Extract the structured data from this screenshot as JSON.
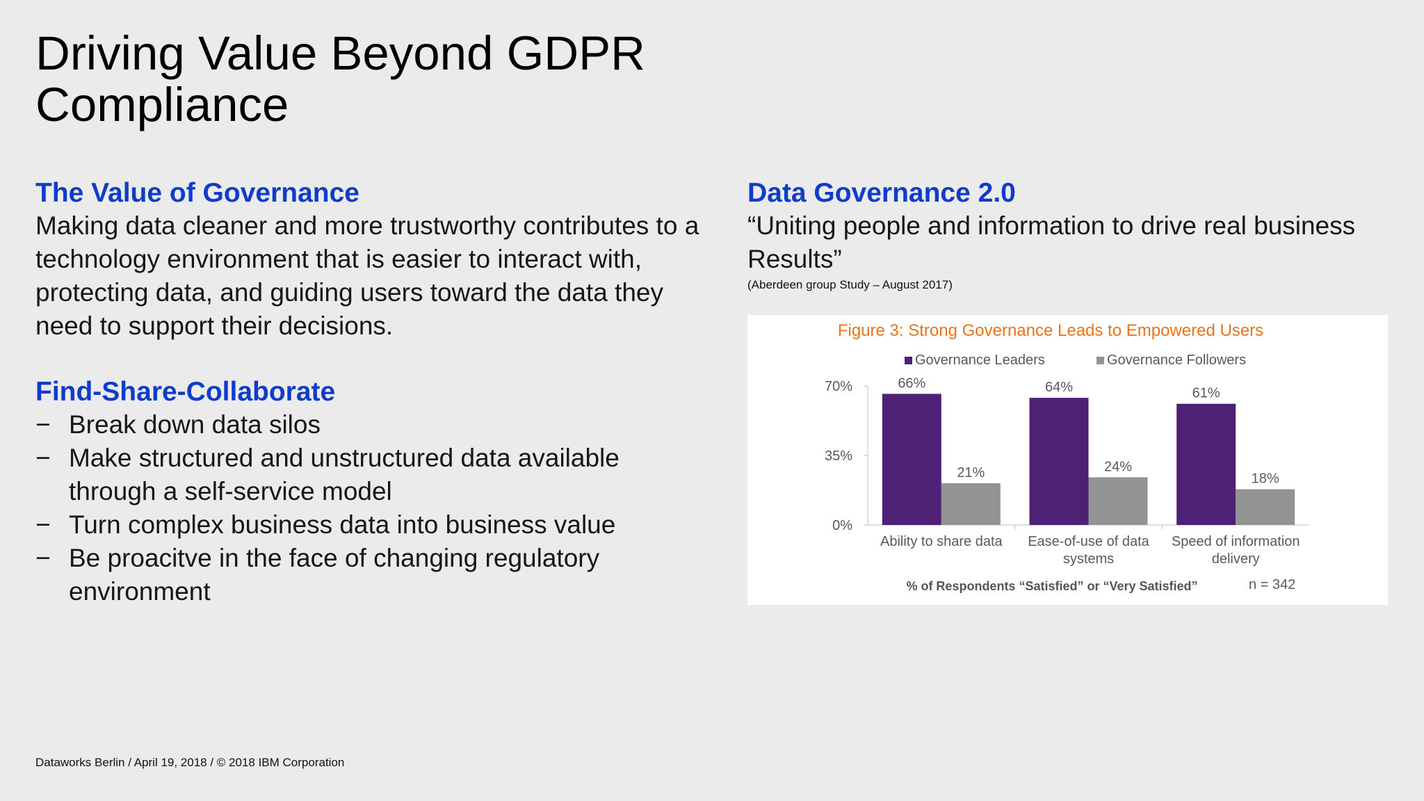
{
  "slide": {
    "title_line1": "Driving Value Beyond GDPR",
    "title_line2": "Compliance"
  },
  "left": {
    "heading1": "The Value of Governance",
    "paragraph": "Making data cleaner and more trustworthy contributes to a technology environment that is easier to interact with, protecting data, and guiding users toward the data they need to support their decisions.",
    "heading2": "Find-Share-Collaborate",
    "bullets": [
      {
        "marker": "−",
        "text": "Break down data silos"
      },
      {
        "marker": "−",
        "text": "Make structured and unstructured data available through a self-service model"
      },
      {
        "marker": "−",
        "text": "Turn complex business data into business value"
      },
      {
        "marker": "−",
        "text": "Be proacitve in the face of changing regulatory environment"
      }
    ]
  },
  "right": {
    "heading": "Data Governance 2.0",
    "quote": "“Uniting people and information to drive real business Results”",
    "citation": "(Aberdeen group Study – August 2017)"
  },
  "chart_data": {
    "type": "bar",
    "title": "Figure 3: Strong Governance Leads to Empowered Users",
    "categories": [
      "Ability to share data",
      "Ease-of-use of data systems",
      "Speed of information delivery"
    ],
    "category_lines": [
      [
        "Ability to share data"
      ],
      [
        "Ease-of-use of data",
        "systems"
      ],
      [
        "Speed of information",
        "delivery"
      ]
    ],
    "series": [
      {
        "name": "Governance Leaders",
        "values": [
          66,
          64,
          61
        ],
        "color": "#4f2176"
      },
      {
        "name": "Governance Followers",
        "values": [
          21,
          24,
          18
        ],
        "color": "#939393"
      }
    ],
    "value_labels": [
      [
        "66%",
        "64%",
        "61%"
      ],
      [
        "21%",
        "24%",
        "18%"
      ]
    ],
    "ylim": [
      0,
      70
    ],
    "yticks": [
      0,
      35,
      70
    ],
    "ytick_labels": [
      "0%",
      "35%",
      "70%"
    ],
    "xlabel": "% of Respondents “Satisfied” or “Very Satisfied”",
    "annotation": "n =  342",
    "legend": "top",
    "grid": false,
    "title_color": "#e8731a"
  },
  "footer": {
    "text": "Dataworks Berlin / April 19, 2018 / © 2018 IBM Corporation"
  }
}
